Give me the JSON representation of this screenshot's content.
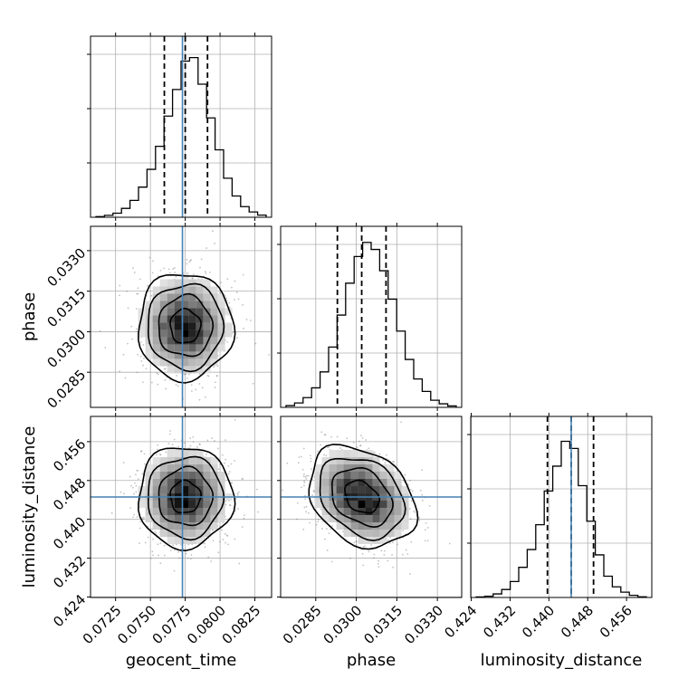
{
  "chart_data": {
    "type": "corner",
    "parameters": [
      "geocent_time",
      "phase",
      "luminosity_distance"
    ],
    "axis_labels": {
      "x": [
        "geocent_time",
        "phase",
        "luminosity_distance"
      ],
      "y": [
        "",
        "phase",
        "luminosity_distance"
      ]
    },
    "ranges": {
      "geocent_time": [
        0.0707,
        0.0837
      ],
      "phase": [
        0.0272,
        0.0339
      ],
      "luminosity_distance": [
        0.4239,
        0.4612
      ]
    },
    "ticks": {
      "geocent_time": [
        "0.0725",
        "0.0750",
        "0.0775",
        "0.0800",
        "0.0825"
      ],
      "phase": [
        "0.0285",
        "0.0300",
        "0.0315",
        "0.0330"
      ],
      "luminosity_distance": [
        "0.424",
        "0.432",
        "0.440",
        "0.448",
        "0.456"
      ]
    },
    "tick_values": {
      "geocent_time": [
        0.0725,
        0.075,
        0.0775,
        0.08,
        0.0825
      ],
      "phase": [
        0.0285,
        0.03,
        0.0315,
        0.033
      ],
      "luminosity_distance": [
        0.424,
        0.432,
        0.44,
        0.448,
        0.456
      ]
    },
    "truths": {
      "geocent_time": 0.0773,
      "phase": null,
      "luminosity_distance": 0.4446
    },
    "quantiles": {
      "geocent_time": [
        0.076,
        0.0775,
        0.0791
      ],
      "phase": [
        0.0293,
        0.0302,
        0.0311
      ],
      "luminosity_distance": [
        0.4397,
        0.4446,
        0.4492
      ]
    },
    "histograms": {
      "geocent_time": [
        0.004,
        0.011,
        0.023,
        0.05,
        0.095,
        0.17,
        0.27,
        0.4,
        0.57,
        0.72,
        0.88,
        0.9,
        0.75,
        0.56,
        0.38,
        0.22,
        0.12,
        0.06,
        0.03,
        0.012
      ],
      "phase": [
        0.01,
        0.025,
        0.055,
        0.11,
        0.2,
        0.34,
        0.52,
        0.7,
        0.85,
        0.93,
        0.89,
        0.77,
        0.61,
        0.43,
        0.27,
        0.16,
        0.09,
        0.04,
        0.02,
        0.008
      ],
      "luminosity_distance": [
        0.003,
        0.007,
        0.02,
        0.045,
        0.09,
        0.17,
        0.27,
        0.41,
        0.6,
        0.74,
        0.88,
        0.84,
        0.63,
        0.43,
        0.24,
        0.12,
        0.06,
        0.03,
        0.012,
        0.004
      ]
    },
    "grid": true,
    "colors": {
      "truth": "#4682b4",
      "hist": "#000000",
      "grid": "#b0b0b0",
      "quantile": "#000000"
    }
  }
}
